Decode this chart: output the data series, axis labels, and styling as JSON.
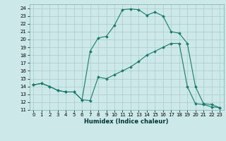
{
  "xlabel": "Humidex (Indice chaleur)",
  "bg_color": "#cce8e8",
  "grid_color": "#aacccc",
  "line_color": "#1a7a6a",
  "xlim": [
    -0.5,
    23.5
  ],
  "ylim": [
    11,
    24.5
  ],
  "yticks": [
    11,
    12,
    13,
    14,
    15,
    16,
    17,
    18,
    19,
    20,
    21,
    22,
    23,
    24
  ],
  "xticks": [
    0,
    1,
    2,
    3,
    4,
    5,
    6,
    7,
    8,
    9,
    10,
    11,
    12,
    13,
    14,
    15,
    16,
    17,
    18,
    19,
    20,
    21,
    22,
    23
  ],
  "curve1_x": [
    0,
    1,
    2,
    3,
    4,
    5,
    6,
    7,
    8,
    9,
    10,
    11,
    12,
    13,
    14,
    15,
    16,
    17,
    18,
    19,
    20,
    21,
    22,
    23
  ],
  "curve1_y": [
    14.2,
    14.4,
    14.0,
    13.5,
    13.3,
    13.3,
    12.3,
    12.2,
    15.2,
    15.0,
    15.5,
    16.0,
    16.5,
    17.2,
    18.0,
    18.5,
    19.0,
    19.5,
    19.5,
    14.0,
    11.8,
    11.7,
    11.4,
    11.3
  ],
  "curve2_x": [
    0,
    1,
    2,
    3,
    4,
    5,
    6,
    7,
    8,
    9,
    10,
    11,
    12,
    13,
    14,
    15,
    16,
    17,
    18,
    19,
    20,
    21,
    22,
    23
  ],
  "curve2_y": [
    14.2,
    14.4,
    14.0,
    13.5,
    13.3,
    13.3,
    12.3,
    18.5,
    20.2,
    20.4,
    21.8,
    23.8,
    23.9,
    23.8,
    23.1,
    23.5,
    23.0,
    21.0,
    20.8,
    19.5,
    14.0,
    11.8,
    11.7,
    11.3
  ],
  "xlabel_fontsize": 6.0,
  "tick_fontsize": 5.0,
  "linewidth": 0.8,
  "markersize": 2.0
}
